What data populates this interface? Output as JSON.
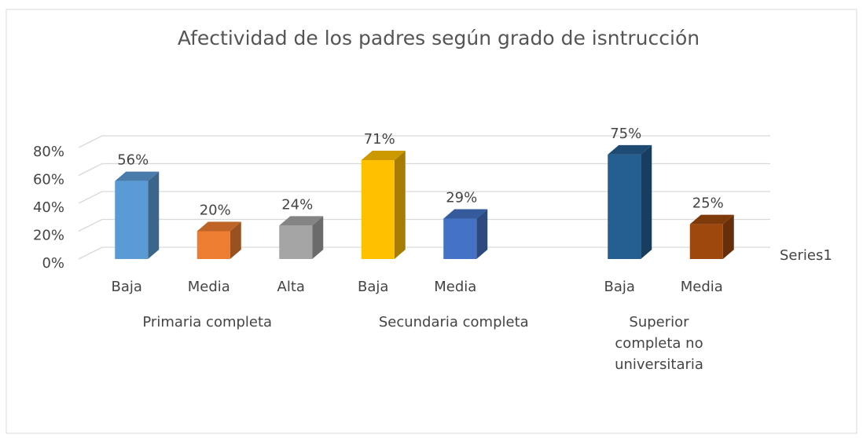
{
  "chart_data": {
    "type": "bar3d",
    "title": "Afectividad de los padres según grado de isntrucción",
    "series_name": "Series1",
    "ylim": [
      0,
      80
    ],
    "yticks": [
      {
        "value": 0,
        "label": "0%"
      },
      {
        "value": 20,
        "label": "20%"
      },
      {
        "value": 40,
        "label": "40%"
      },
      {
        "value": 60,
        "label": "60%"
      },
      {
        "value": 80,
        "label": "80%"
      }
    ],
    "grid": true,
    "groups": [
      {
        "label_lines": [
          "Primaria completa"
        ],
        "categories": [
          "Baja",
          "Media",
          "Alta"
        ],
        "values": [
          56,
          20,
          24
        ],
        "value_labels": [
          "56%",
          "20%",
          "24%"
        ],
        "colors": [
          "#5b9bd5",
          "#ed7d31",
          "#a5a5a5"
        ]
      },
      {
        "label_lines": [
          "Secundaria  completa"
        ],
        "categories": [
          "Baja",
          "Media",
          null
        ],
        "values": [
          71,
          29,
          null
        ],
        "value_labels": [
          "71%",
          "29%",
          null
        ],
        "colors": [
          "#ffc000",
          "#4472c4",
          null
        ]
      },
      {
        "label_lines": [
          "Superior",
          "completa no",
          "universitaria"
        ],
        "categories": [
          "Baja",
          "Media"
        ],
        "values": [
          75,
          25
        ],
        "value_labels": [
          "75%",
          "25%"
        ],
        "colors": [
          "#255e91",
          "#9e480e"
        ]
      }
    ]
  }
}
